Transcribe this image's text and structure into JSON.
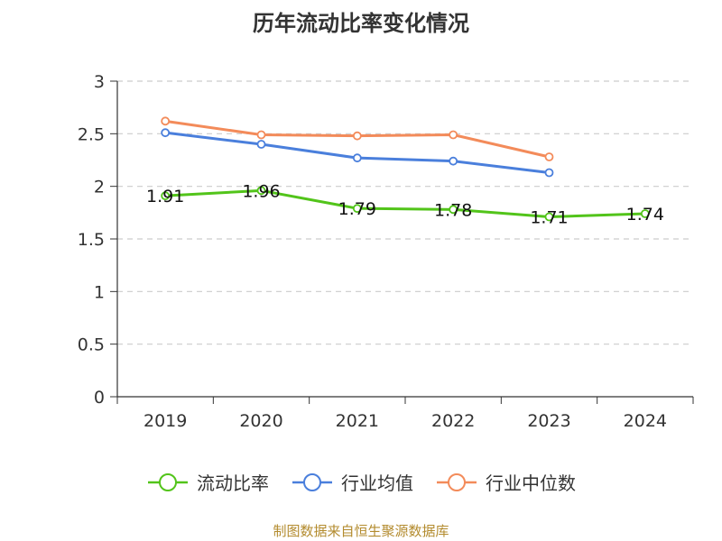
{
  "title": "历年流动比率变化情况",
  "footer": "制图数据来自恒生聚源数据库",
  "colors": {
    "primary": "#52c41a",
    "industry_avg": "#4a7fdc",
    "industry_median": "#f38b5a"
  },
  "chart_data": {
    "type": "line",
    "categories": [
      "2019",
      "2020",
      "2021",
      "2022",
      "2023",
      "2024"
    ],
    "ylim": [
      0,
      3
    ],
    "yticks": [
      "0",
      "0.5",
      "1",
      "1.5",
      "2",
      "2.5",
      "3"
    ],
    "grid": true,
    "legend_position": "bottom",
    "series": [
      {
        "name": "流动比率",
        "values": [
          1.91,
          1.96,
          1.79,
          1.78,
          1.71,
          1.74
        ],
        "labels": [
          "1.91",
          "1.96",
          "1.79",
          "1.78",
          "1.71",
          "1.74"
        ]
      },
      {
        "name": "行业均值",
        "values": [
          2.51,
          2.4,
          2.27,
          2.24,
          2.13,
          null
        ]
      },
      {
        "name": "行业中位数",
        "values": [
          2.62,
          2.49,
          2.48,
          2.49,
          2.28,
          null
        ]
      }
    ]
  }
}
